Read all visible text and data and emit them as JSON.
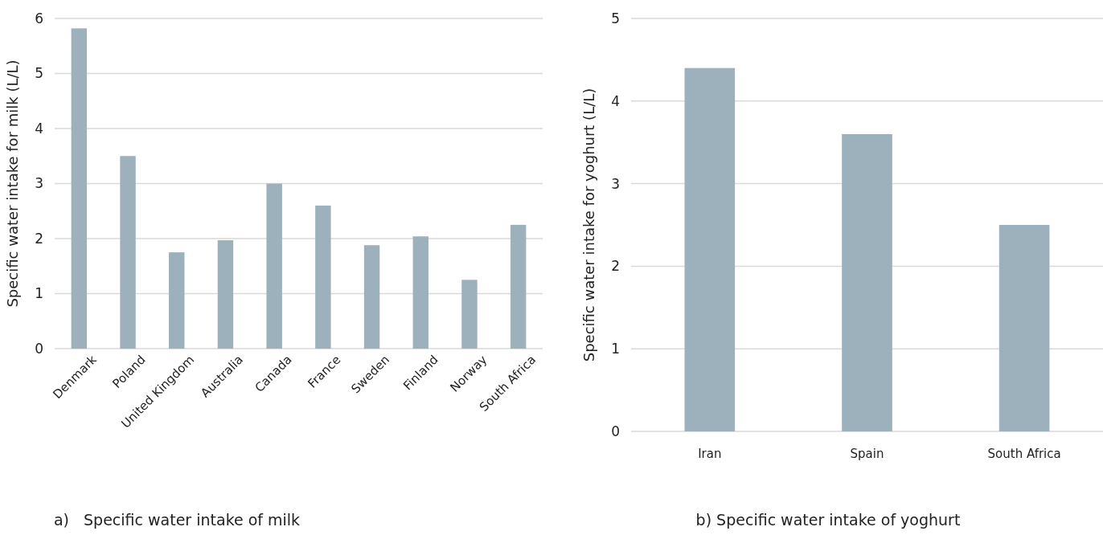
{
  "chart_data": [
    {
      "type": "bar",
      "title": "a)   Specific water intake of milk",
      "ylabel": "Specific water intake for milk (L/L)",
      "categories": [
        "Denmark",
        "Poland",
        "United Kingdom",
        "Australia",
        "Canada",
        "France",
        "Sweden",
        "Finland",
        "Norway",
        "South Africa"
      ],
      "values": [
        5.82,
        3.5,
        1.75,
        1.97,
        3.0,
        2.6,
        1.88,
        2.04,
        1.25,
        2.25
      ],
      "color": "#9db1bd",
      "ylim": [
        0,
        6
      ],
      "yticks": [
        0,
        1,
        2,
        3,
        4,
        5,
        6
      ],
      "grid": "y"
    },
    {
      "type": "bar",
      "title": "b) Specific water intake of yoghurt",
      "ylabel": "Specific water intake for yoghurt (L/L)",
      "categories": [
        "Iran",
        "Spain",
        "South Africa"
      ],
      "values": [
        4.4,
        3.6,
        2.5
      ],
      "color": "#9db1bd",
      "ylim": [
        0,
        5
      ],
      "yticks": [
        0,
        1,
        2,
        3,
        4,
        5
      ],
      "grid": "y"
    }
  ]
}
